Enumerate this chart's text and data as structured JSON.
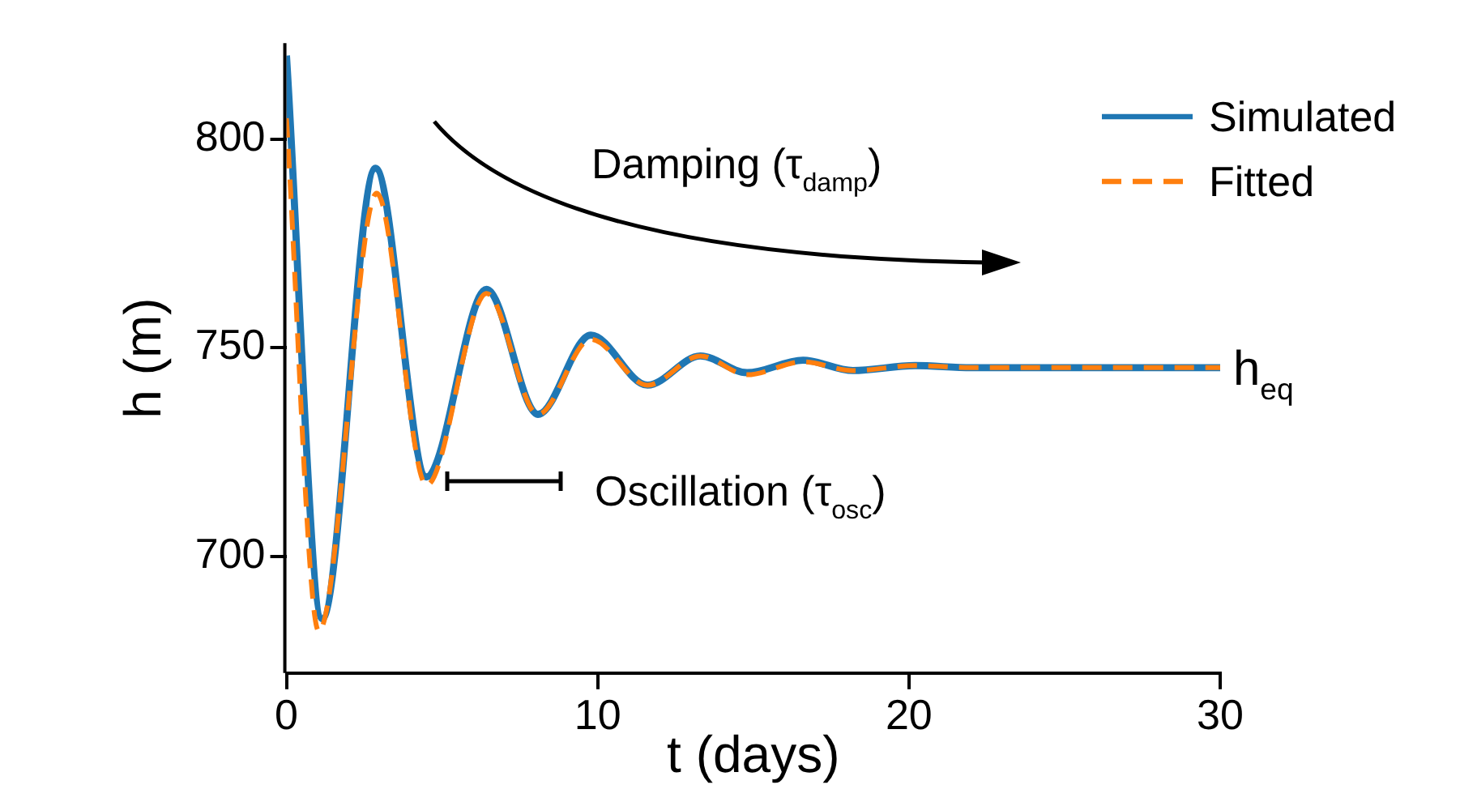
{
  "chart_data": {
    "type": "line",
    "xlabel": "t (days)",
    "ylabel": "h (m)",
    "xlim": [
      0,
      30
    ],
    "xticks": [
      0,
      10,
      20,
      30
    ],
    "ylim": [
      672,
      823
    ],
    "yticks": [
      700,
      750,
      800
    ],
    "grid": false,
    "legend": "top right",
    "marker": "none",
    "series": [
      {
        "name": "Simulated",
        "color": "#1f77b4",
        "line_style": "solid",
        "x": [
          0,
          1.15,
          2.86,
          4.5,
          6.43,
          8.08,
          9.78,
          11.6,
          13.3,
          14.8,
          16.6,
          18.2,
          20.2,
          22,
          30
        ],
        "values": [
          820,
          685,
          793,
          719,
          764,
          734,
          753,
          741,
          748,
          744,
          747,
          744.5,
          745.7,
          745.2,
          745.2
        ]
      },
      {
        "name": "Fitted",
        "color": "#ff7f0e",
        "line_style": "dashed",
        "x": [
          0,
          1.04,
          2.9,
          4.5,
          6.43,
          8.08,
          9.78,
          11.6,
          13.3,
          14.8,
          16.6,
          18.2,
          20.2,
          22,
          30
        ],
        "values": [
          805,
          682,
          787,
          717,
          763,
          734,
          752,
          741,
          748,
          743.5,
          746.6,
          744.5,
          745.7,
          745.2,
          745.2
        ]
      }
    ],
    "annotations": [
      "Damping (τ$_{damp}$)",
      "Oscillation (τ$_{osc}$)",
      {
        "text": "h$_{eq}$",
        "x": 30,
        "y": 745
      }
    ]
  }
}
